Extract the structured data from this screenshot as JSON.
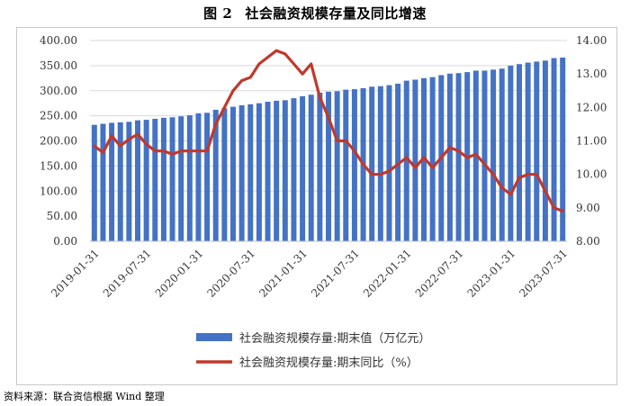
{
  "title": {
    "fig_label": "图 2",
    "text": "社会融资规模存量及同比增速"
  },
  "source": "资料来源：联合资信根据 Wind 整理",
  "chart_data": {
    "type": "bar+line",
    "grid": true,
    "legend_position": "bottom",
    "x_dates": [
      "2019-01-31",
      "2019-02-28",
      "2019-03-31",
      "2019-04-30",
      "2019-05-31",
      "2019-06-30",
      "2019-07-31",
      "2019-08-31",
      "2019-09-30",
      "2019-10-31",
      "2019-11-30",
      "2019-12-31",
      "2020-01-31",
      "2020-02-29",
      "2020-03-31",
      "2020-04-30",
      "2020-05-31",
      "2020-06-30",
      "2020-07-31",
      "2020-08-31",
      "2020-09-30",
      "2020-10-31",
      "2020-11-30",
      "2020-12-31",
      "2021-01-31",
      "2021-02-28",
      "2021-03-31",
      "2021-04-30",
      "2021-05-31",
      "2021-06-30",
      "2021-07-31",
      "2021-08-31",
      "2021-09-30",
      "2021-10-31",
      "2021-11-30",
      "2021-12-31",
      "2022-01-31",
      "2022-02-28",
      "2022-03-31",
      "2022-04-30",
      "2022-05-31",
      "2022-06-30",
      "2022-07-31",
      "2022-08-31",
      "2022-09-30",
      "2022-10-31",
      "2022-11-30",
      "2022-12-31",
      "2023-01-31",
      "2023-02-28",
      "2023-03-31",
      "2023-04-30",
      "2023-05-31",
      "2023-06-30",
      "2023-07-31"
    ],
    "x_tick_labels": [
      "2019-01-31",
      "2019-07-31",
      "2020-01-31",
      "2020-07-31",
      "2021-01-31",
      "2021-07-31",
      "2022-01-31",
      "2022-07-31",
      "2023-01-31",
      "2023-07-31"
    ],
    "y_left": {
      "ticks": [
        "0.00",
        "50.00",
        "100.00",
        "150.00",
        "200.00",
        "250.00",
        "300.00",
        "350.00",
        "400.00"
      ],
      "range": [
        0,
        400
      ]
    },
    "y_right": {
      "ticks": [
        "8.00",
        "9.00",
        "10.00",
        "11.00",
        "12.00",
        "13.00",
        "14.00"
      ],
      "range": [
        8,
        14
      ]
    },
    "series": [
      {
        "name": "社会融资规模存量:期末值（万亿元）",
        "type": "bar",
        "axis": "left",
        "color": "#4472C4",
        "values": [
          232,
          234,
          236,
          237,
          238,
          241,
          242,
          244,
          246,
          247,
          249,
          251,
          255,
          256,
          262,
          265,
          268,
          271,
          273,
          275,
          278,
          280,
          281,
          285,
          289,
          292,
          296,
          298,
          299,
          302,
          303,
          305,
          308,
          309,
          311,
          314,
          320,
          322,
          325,
          327,
          331,
          334,
          335,
          337,
          340,
          340,
          342,
          344,
          350,
          353,
          356,
          358,
          360,
          365,
          366
        ]
      },
      {
        "name": "社会融资规模存量:期末同比（%）",
        "type": "line",
        "axis": "right",
        "color": "#C0392B",
        "values": [
          10.85,
          10.65,
          11.15,
          10.85,
          11.05,
          11.2,
          10.9,
          10.7,
          10.7,
          10.6,
          10.7,
          10.7,
          10.7,
          10.7,
          11.5,
          12.0,
          12.5,
          12.8,
          12.9,
          13.3,
          13.5,
          13.7,
          13.6,
          13.3,
          13.0,
          13.3,
          12.3,
          11.7,
          11.0,
          11.0,
          10.7,
          10.3,
          10.0,
          10.0,
          10.1,
          10.3,
          10.5,
          10.2,
          10.5,
          10.2,
          10.5,
          10.8,
          10.7,
          10.5,
          10.6,
          10.3,
          10.0,
          9.6,
          9.4,
          9.9,
          10.0,
          10.0,
          9.5,
          9.0,
          8.9
        ]
      }
    ]
  }
}
